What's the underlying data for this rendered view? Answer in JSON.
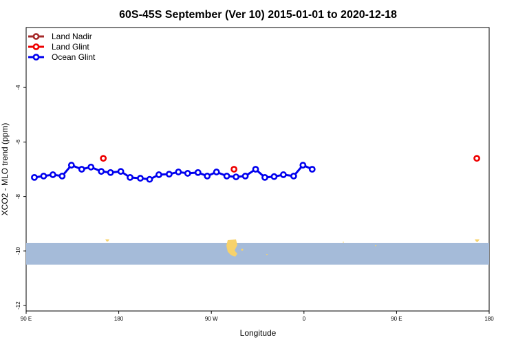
{
  "chart_data": {
    "type": "line",
    "title": "60S-45S September (Ver 10)   2015-01-01 to 2020-12-18",
    "xlabel": "Longitude",
    "ylabel": "XCO2 - MLO trend (ppm)",
    "xlim": [
      90,
      450
    ],
    "ylim": [
      -12.2,
      -1.8
    ],
    "x_ticks": [
      {
        "value": 90,
        "label": "90 E"
      },
      {
        "value": 180,
        "label": "180"
      },
      {
        "value": 270,
        "label": "90 W"
      },
      {
        "value": 360,
        "label": "0"
      },
      {
        "value": 450,
        "label": "90 E"
      },
      {
        "value": 540,
        "label": "180"
      }
    ],
    "y_ticks": [
      {
        "value": -4,
        "label": "-4"
      },
      {
        "value": -6,
        "label": "-6"
      },
      {
        "value": -8,
        "label": "-8"
      },
      {
        "value": -10,
        "label": "-10"
      },
      {
        "value": -12,
        "label": "-12"
      }
    ],
    "grid": false,
    "legend_position": "top-left",
    "map_strip": {
      "lat_range": [
        -60,
        -45
      ],
      "y_range": [
        -10.5,
        -9.7
      ],
      "ocean_color": "#a5bbd9",
      "land_color": "#f7d26b"
    },
    "series": [
      {
        "name": "Land Nadir",
        "color": "#a52a2a",
        "points": []
      },
      {
        "name": "Land Glint",
        "color": "#ee0000",
        "points": [
          [
            165,
            -6.6
          ],
          [
            292,
            -7.0
          ],
          [
            528,
            -6.6
          ]
        ]
      },
      {
        "name": "Ocean Glint",
        "color": "#0000ee",
        "points": [
          [
            98,
            -7.3
          ],
          [
            107,
            -7.25
          ],
          [
            116,
            -7.2
          ],
          [
            125,
            -7.25
          ],
          [
            134,
            -6.85
          ],
          [
            144,
            -7.0
          ],
          [
            153,
            -6.92
          ],
          [
            163,
            -7.08
          ],
          [
            172,
            -7.12
          ],
          [
            182,
            -7.08
          ],
          [
            191,
            -7.3
          ],
          [
            201,
            -7.33
          ],
          [
            210,
            -7.37
          ],
          [
            219,
            -7.2
          ],
          [
            229,
            -7.18
          ],
          [
            238,
            -7.1
          ],
          [
            247,
            -7.15
          ],
          [
            257,
            -7.12
          ],
          [
            266,
            -7.25
          ],
          [
            275,
            -7.1
          ],
          [
            285,
            -7.25
          ],
          [
            294,
            -7.28
          ],
          [
            303,
            -7.25
          ],
          [
            313,
            -7.0
          ],
          [
            322,
            -7.3
          ],
          [
            331,
            -7.27
          ],
          [
            340,
            -7.2
          ],
          [
            350,
            -7.25
          ],
          [
            359,
            -6.85
          ],
          [
            368,
            -7.0
          ]
        ]
      }
    ]
  }
}
